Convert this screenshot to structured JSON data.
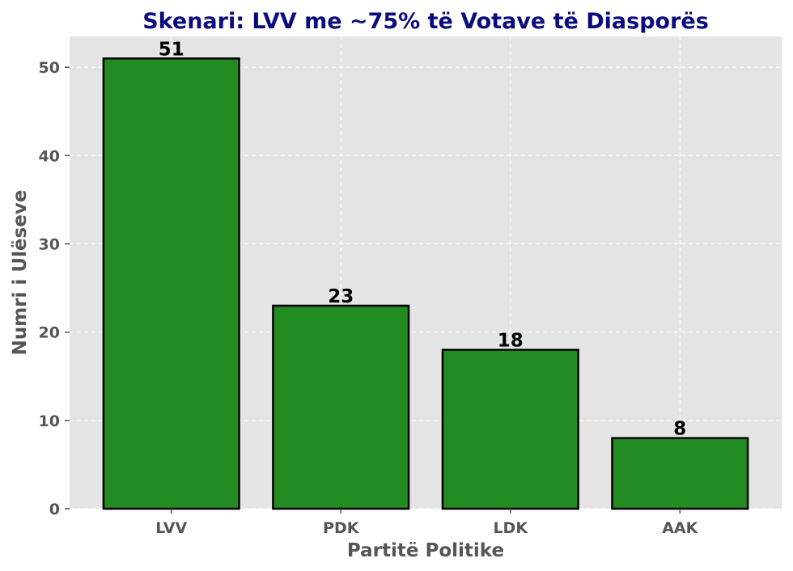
{
  "chart_data": {
    "type": "bar",
    "title": "Skenari: LVV me ~75% të Votave të Diasporës",
    "xlabel": "Partitë Politike",
    "ylabel": "Numri i Ulëseve",
    "categories": [
      "LVV",
      "PDK",
      "LDK",
      "AAK"
    ],
    "values": [
      51,
      23,
      18,
      8
    ],
    "data_labels": [
      "51",
      "23",
      "18",
      "8"
    ],
    "ylim": [
      0,
      53.5
    ],
    "yticks": [
      0,
      10,
      20,
      30,
      40,
      50
    ],
    "grid": true,
    "colors": {
      "bar": "#228b22",
      "bar_edge": "#000000",
      "plot_bg": "#e5e5e5",
      "grid": "#ffffff",
      "title": "#0a0a7d",
      "axis_text": "#555555"
    }
  }
}
